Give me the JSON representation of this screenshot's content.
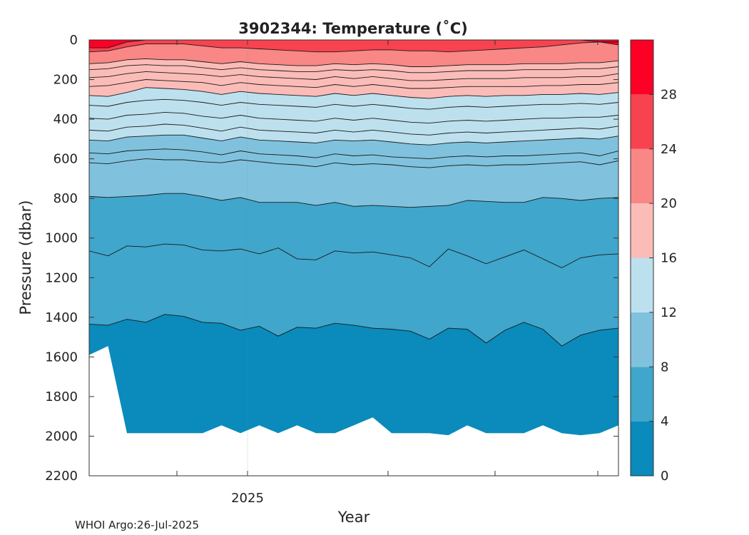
{
  "chart_data": {
    "type": "contour",
    "title": "3902344:  Temperature (˚C)",
    "xlabel": "Year",
    "ylabel": "Pressure (dbar)",
    "credit": "WHOI Argo:26-Jul-2025",
    "x_tick_labels": [
      "2025"
    ],
    "y_ticks": [
      0,
      200,
      400,
      600,
      800,
      1000,
      1200,
      1400,
      1600,
      1800,
      2000,
      2200
    ],
    "ylim": [
      0,
      2200
    ],
    "y_reversed": true,
    "colorbar": {
      "ticks": [
        0,
        4,
        8,
        12,
        16,
        20,
        24,
        28
      ],
      "range": [
        0,
        32
      ],
      "bands": [
        {
          "min": 0,
          "max": 4,
          "color": "#0a8bbb"
        },
        {
          "min": 4,
          "max": 8,
          "color": "#40a6cc"
        },
        {
          "min": 8,
          "max": 12,
          "color": "#80c2dd"
        },
        {
          "min": 12,
          "max": 16,
          "color": "#bde0ee"
        },
        {
          "min": 16,
          "max": 20,
          "color": "#fbbcb8"
        },
        {
          "min": 20,
          "max": 24,
          "color": "#f88785"
        },
        {
          "min": 24,
          "max": 28,
          "color": "#f7434f"
        },
        {
          "min": 28,
          "max": 32,
          "color": "#fc0025"
        }
      ]
    },
    "contour_levels": [
      {
        "level": 4,
        "depth": [
          1435,
          1440,
          1410,
          1425,
          1385,
          1395,
          1425,
          1430,
          1465,
          1445,
          1495,
          1450,
          1455,
          1430,
          1440,
          1455,
          1460,
          1470,
          1510,
          1455,
          1460,
          1530,
          1465,
          1425,
          1460,
          1545,
          1490,
          1465,
          1455
        ]
      },
      {
        "level": 6,
        "depth": [
          1065,
          1090,
          1040,
          1045,
          1030,
          1035,
          1060,
          1065,
          1055,
          1080,
          1050,
          1105,
          1110,
          1065,
          1075,
          1070,
          1085,
          1100,
          1145,
          1055,
          1090,
          1130,
          1095,
          1060,
          1105,
          1150,
          1100,
          1085,
          1080
        ]
      },
      {
        "level": 8,
        "depth": [
          790,
          795,
          790,
          785,
          775,
          775,
          790,
          810,
          795,
          820,
          820,
          820,
          835,
          820,
          840,
          835,
          840,
          845,
          840,
          835,
          810,
          815,
          820,
          820,
          795,
          800,
          810,
          800,
          795
        ]
      },
      {
        "level": 10,
        "depth": [
          620,
          625,
          610,
          600,
          605,
          605,
          615,
          620,
          605,
          615,
          625,
          630,
          640,
          620,
          630,
          625,
          630,
          640,
          645,
          635,
          630,
          635,
          630,
          630,
          625,
          620,
          615,
          630,
          610
        ]
      },
      {
        "level": 11,
        "depth": [
          570,
          575,
          560,
          555,
          550,
          555,
          565,
          580,
          560,
          575,
          580,
          585,
          595,
          575,
          585,
          580,
          590,
          595,
          600,
          590,
          585,
          590,
          585,
          585,
          580,
          575,
          570,
          585,
          560
        ]
      },
      {
        "level": 12,
        "depth": [
          505,
          510,
          490,
          485,
          480,
          480,
          495,
          510,
          490,
          505,
          510,
          515,
          520,
          505,
          510,
          505,
          515,
          525,
          530,
          520,
          515,
          520,
          515,
          510,
          505,
          500,
          495,
          500,
          485
        ]
      },
      {
        "level": 13,
        "depth": [
          455,
          460,
          440,
          435,
          425,
          430,
          445,
          460,
          440,
          455,
          460,
          465,
          470,
          455,
          465,
          455,
          465,
          475,
          480,
          470,
          465,
          470,
          465,
          460,
          455,
          450,
          445,
          450,
          435
        ]
      },
      {
        "level": 14,
        "depth": [
          395,
          400,
          380,
          375,
          365,
          370,
          385,
          395,
          380,
          395,
          400,
          405,
          410,
          395,
          405,
          395,
          405,
          415,
          420,
          410,
          405,
          410,
          405,
          400,
          395,
          395,
          390,
          390,
          380
        ]
      },
      {
        "level": 15,
        "depth": [
          330,
          335,
          315,
          305,
          300,
          305,
          315,
          330,
          315,
          325,
          330,
          335,
          340,
          325,
          335,
          325,
          335,
          345,
          350,
          340,
          335,
          340,
          335,
          330,
          325,
          325,
          320,
          325,
          315
        ]
      },
      {
        "level": 16,
        "depth": [
          280,
          285,
          265,
          240,
          245,
          250,
          260,
          275,
          260,
          270,
          275,
          280,
          285,
          270,
          280,
          270,
          280,
          290,
          295,
          285,
          280,
          285,
          280,
          280,
          275,
          275,
          270,
          275,
          265
        ]
      },
      {
        "level": 17,
        "depth": [
          235,
          230,
          215,
          200,
          205,
          210,
          215,
          230,
          215,
          225,
          230,
          235,
          240,
          225,
          235,
          225,
          235,
          245,
          245,
          240,
          235,
          235,
          235,
          235,
          230,
          230,
          225,
          225,
          215
        ]
      },
      {
        "level": 18,
        "depth": [
          190,
          185,
          170,
          160,
          165,
          170,
          175,
          185,
          175,
          185,
          190,
          195,
          200,
          185,
          195,
          185,
          195,
          205,
          205,
          200,
          195,
          195,
          195,
          190,
          190,
          190,
          185,
          185,
          170
        ]
      },
      {
        "level": 19,
        "depth": [
          150,
          145,
          130,
          125,
          130,
          130,
          140,
          150,
          140,
          150,
          155,
          160,
          160,
          150,
          155,
          150,
          155,
          165,
          165,
          160,
          155,
          155,
          155,
          150,
          150,
          150,
          145,
          145,
          135
        ]
      },
      {
        "level": 20,
        "depth": [
          120,
          115,
          100,
          95,
          100,
          100,
          110,
          120,
          110,
          120,
          125,
          130,
          130,
          120,
          125,
          120,
          125,
          135,
          135,
          130,
          125,
          125,
          125,
          120,
          120,
          120,
          115,
          115,
          105
        ]
      },
      {
        "level": 24,
        "depth": [
          60,
          55,
          35,
          20,
          20,
          20,
          30,
          40,
          40,
          45,
          50,
          55,
          60,
          60,
          55,
          50,
          50,
          55,
          55,
          60,
          55,
          50,
          45,
          40,
          35,
          25,
          15,
          10,
          10
        ]
      },
      {
        "level": 28,
        "depth": [
          40,
          40,
          10,
          0,
          0,
          0,
          0,
          0,
          0,
          0,
          0,
          0,
          0,
          0,
          0,
          0,
          0,
          0,
          0,
          0,
          0,
          0,
          0,
          0,
          0,
          0,
          0,
          10,
          25
        ]
      }
    ],
    "profile_max_depth": [
      1590,
      1545,
      1985,
      1985,
      1985,
      1985,
      1985,
      1945,
      1985,
      1945,
      1985,
      1945,
      1985,
      1985,
      1945,
      1905,
      1985,
      1985,
      1985,
      1995,
      1945,
      1985,
      1985,
      1985,
      1945,
      1985,
      1995,
      1985,
      1945
    ]
  }
}
